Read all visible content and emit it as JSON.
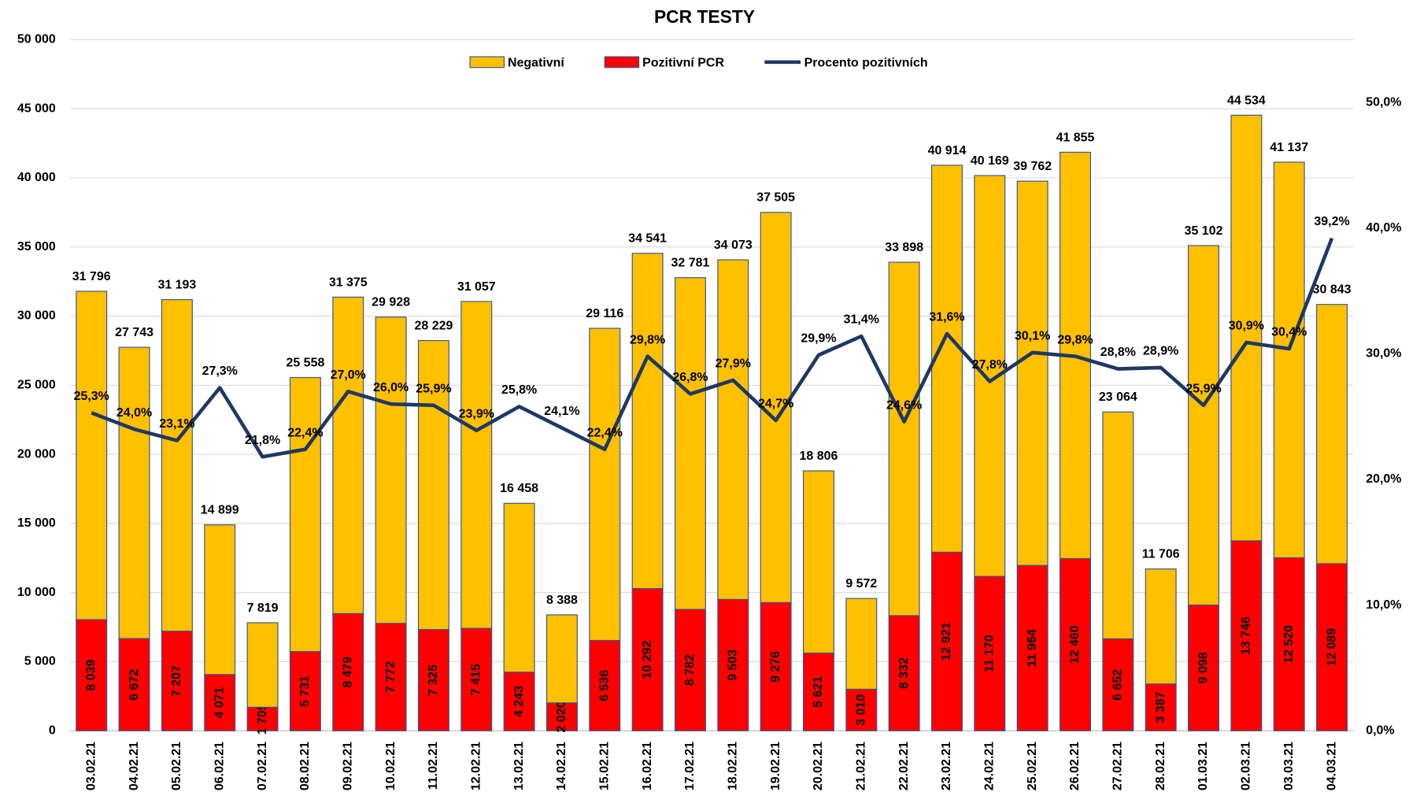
{
  "chart_data": {
    "type": "bar",
    "title": "PCR TESTY",
    "categories": [
      "03.02.21",
      "04.02.21",
      "05.02.21",
      "06.02.21",
      "07.02.21",
      "08.02.21",
      "09.02.21",
      "10.02.21",
      "11.02.21",
      "12.02.21",
      "13.02.21",
      "14.02.21",
      "15.02.21",
      "16.02.21",
      "17.02.21",
      "18.02.21",
      "19.02.21",
      "20.02.21",
      "21.02.21",
      "22.02.21",
      "23.02.21",
      "24.02.21",
      "25.02.21",
      "26.02.21",
      "27.02.21",
      "28.02.21",
      "01.03.21",
      "02.03.21",
      "03.03.21",
      "04.03.21"
    ],
    "series": [
      {
        "name": "Negativní",
        "color": "#ffc000",
        "values": [
          23757,
          21071,
          23986,
          10828,
          6114,
          19827,
          22896,
          22156,
          20904,
          23642,
          12215,
          6368,
          22580,
          24249,
          23999,
          24570,
          28229,
          13185,
          6562,
          25566,
          27993,
          28999,
          27798,
          29395,
          16412,
          8319,
          26004,
          30788,
          28617,
          18754
        ]
      },
      {
        "name": "Pozitivní PCR",
        "color": "#ff0000",
        "values": [
          8039,
          6672,
          7207,
          4071,
          1705,
          5731,
          8479,
          7772,
          7325,
          7415,
          4243,
          2020,
          6536,
          10292,
          8782,
          9503,
          9276,
          5621,
          3010,
          8332,
          12921,
          11170,
          11964,
          12460,
          6652,
          3387,
          9098,
          13746,
          12520,
          12089
        ],
        "value_labels": [
          "8 039",
          "6 672",
          "7 207",
          "4 071",
          "1 705",
          "5 731",
          "8 479",
          "7 772",
          "7 325",
          "7 415",
          "4 243",
          "2 020",
          "6 536",
          "10 292",
          "8 782",
          "9 503",
          "9 276",
          "5 621",
          "3 010",
          "8 332",
          "12 921",
          "11 170",
          "11 964",
          "12 460",
          "6 652",
          "3 387",
          "9 098",
          "13 746",
          "12 520",
          "12 089"
        ]
      },
      {
        "name": "Procento pozitivních",
        "color": "#1f3864",
        "type": "line",
        "axis": "y2",
        "values": [
          25.3,
          24.0,
          23.1,
          27.3,
          21.8,
          22.4,
          27.0,
          26.0,
          25.9,
          23.9,
          25.8,
          24.1,
          22.4,
          29.8,
          26.8,
          27.9,
          24.7,
          29.9,
          31.4,
          24.6,
          31.6,
          27.8,
          30.1,
          29.8,
          28.8,
          28.9,
          25.9,
          30.9,
          30.4,
          39.2
        ],
        "value_labels": [
          "25,3%",
          "24,0%",
          "23,1%",
          "27,3%",
          "21,8%",
          "22,4%",
          "27,0%",
          "26,0%",
          "25,9%",
          "23,9%",
          "25,8%",
          "24,1%",
          "22,4%",
          "29,8%",
          "26,8%",
          "27,9%",
          "24,7%",
          "29,9%",
          "31,4%",
          "24,6%",
          "31,6%",
          "27,8%",
          "30,1%",
          "29,8%",
          "28,8%",
          "28,9%",
          "25,9%",
          "30,9%",
          "30,4%",
          "39,2%"
        ]
      }
    ],
    "totals": {
      "values": [
        31796,
        27743,
        31193,
        14899,
        7819,
        25558,
        31375,
        29928,
        28229,
        31057,
        16458,
        8388,
        29116,
        34541,
        32781,
        34073,
        37505,
        18806,
        9572,
        33898,
        40914,
        40169,
        39762,
        41855,
        23064,
        11706,
        35102,
        44534,
        41137,
        30843
      ],
      "value_labels": [
        "31 796",
        "27 743",
        "31 193",
        "14 899",
        "7 819",
        "25 558",
        "31 375",
        "29 928",
        "28 229",
        "31 057",
        "16 458",
        "8 388",
        "29 116",
        "34 541",
        "32 781",
        "34 073",
        "37 505",
        "18 806",
        "9 572",
        "33 898",
        "40 914",
        "40 169",
        "39 762",
        "41 855",
        "23 064",
        "11 706",
        "35 102",
        "44 534",
        "41 137",
        "30 843"
      ]
    },
    "ylim": [
      0,
      50000
    ],
    "yticks": [
      0,
      {
        "value": 5000,
        "label": "5 000"
      },
      {
        "value": 10000,
        "label": "10 000"
      },
      {
        "value": 15000,
        "label": "15 000"
      },
      {
        "value": 20000,
        "label": "20 000"
      },
      {
        "value": 25000,
        "label": "25 000"
      },
      {
        "value": 30000,
        "label": "30 000"
      },
      {
        "value": 35000,
        "label": "35 000"
      },
      {
        "value": 40000,
        "label": "40 000"
      },
      {
        "value": 45000,
        "label": "45 000"
      },
      {
        "value": 50000,
        "label": "50 000"
      }
    ],
    "y2lim": [
      0,
      55
    ],
    "y2ticks": [
      {
        "value": 0,
        "label": "0,0%"
      },
      {
        "value": 10,
        "label": "10,0%"
      },
      {
        "value": 20,
        "label": "20,0%"
      },
      {
        "value": 30,
        "label": "30,0%"
      },
      {
        "value": 40,
        "label": "40,0%"
      },
      {
        "value": 50,
        "label": "50,0%"
      }
    ],
    "grid": true,
    "legend": "top"
  }
}
